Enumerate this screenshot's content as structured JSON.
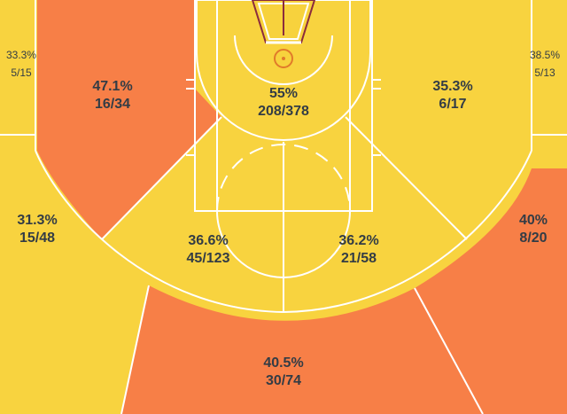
{
  "chart_data": {
    "type": "heatmap",
    "colors": {
      "hot": "#f7d23d",
      "cold": "#f77f47",
      "lines": "#ffffff",
      "text": "#333c45"
    },
    "zones": [
      {
        "id": "left-corner-three",
        "pct": "33.3%",
        "made_att": "5/15",
        "made": 5,
        "attempts": 15,
        "color": "hot"
      },
      {
        "id": "left-baseline-midrange",
        "pct": "47.1%",
        "made_att": "16/34",
        "made": 16,
        "attempts": 34,
        "color": "cold"
      },
      {
        "id": "restricted-paint",
        "pct": "55%",
        "made_att": "208/378",
        "made": 208,
        "attempts": 378,
        "color": "hot"
      },
      {
        "id": "right-baseline-midrange",
        "pct": "35.3%",
        "made_att": "6/17",
        "made": 6,
        "attempts": 17,
        "color": "hot"
      },
      {
        "id": "right-corner-three",
        "pct": "38.5%",
        "made_att": "5/13",
        "made": 5,
        "attempts": 13,
        "color": "hot"
      },
      {
        "id": "left-wing-three",
        "pct": "31.3%",
        "made_att": "15/48",
        "made": 15,
        "attempts": 48,
        "color": "hot"
      },
      {
        "id": "left-elbow-midrange",
        "pct": "36.6%",
        "made_att": "45/123",
        "made": 45,
        "attempts": 123,
        "color": "hot"
      },
      {
        "id": "right-elbow-midrange",
        "pct": "36.2%",
        "made_att": "21/58",
        "made": 21,
        "attempts": 58,
        "color": "hot"
      },
      {
        "id": "right-wing-three",
        "pct": "40%",
        "made_att": "8/20",
        "made": 8,
        "attempts": 20,
        "color": "cold"
      },
      {
        "id": "top-of-key-three",
        "pct": "40.5%",
        "made_att": "30/74",
        "made": 30,
        "attempts": 74,
        "color": "cold"
      }
    ]
  }
}
